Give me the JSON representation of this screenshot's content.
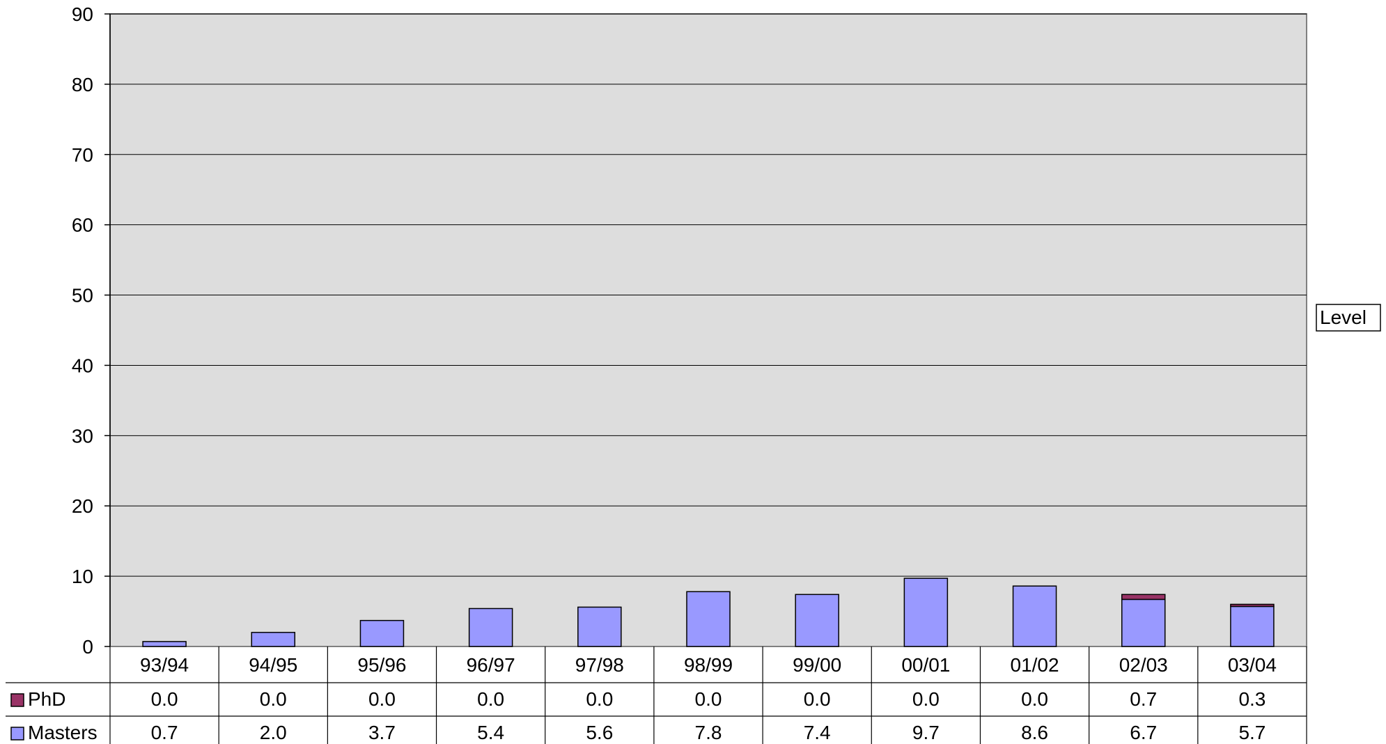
{
  "chart_data": {
    "type": "bar",
    "stacked": true,
    "categories": [
      "93/94",
      "94/95",
      "95/96",
      "96/97",
      "97/98",
      "98/99",
      "99/00",
      "00/01",
      "01/02",
      "02/03",
      "03/04"
    ],
    "series": [
      {
        "name": "Masters",
        "values": [
          0.7,
          2.0,
          3.7,
          5.4,
          5.6,
          7.8,
          7.4,
          9.7,
          8.6,
          6.7,
          5.7
        ],
        "color": "#9999ff"
      },
      {
        "name": "PhD",
        "values": [
          0.0,
          0.0,
          0.0,
          0.0,
          0.0,
          0.0,
          0.0,
          0.0,
          0.0,
          0.7,
          0.3
        ],
        "color": "#993366"
      }
    ],
    "table_rows": [
      {
        "label": "PhD",
        "values": [
          "0.0",
          "0.0",
          "0.0",
          "0.0",
          "0.0",
          "0.0",
          "0.0",
          "0.0",
          "0.0",
          "0.7",
          "0.3"
        ]
      },
      {
        "label": "Masters",
        "values": [
          "0.7",
          "2.0",
          "3.7",
          "5.4",
          "5.6",
          "7.8",
          "7.4",
          "9.7",
          "8.6",
          "6.7",
          "5.7"
        ]
      }
    ],
    "ylim": [
      0,
      90
    ],
    "yticks": [
      "0",
      "10",
      "20",
      "30",
      "40",
      "50",
      "60",
      "70",
      "80",
      "90"
    ],
    "grid": true,
    "plot_background": "#dddddd",
    "legend_title": "Level",
    "legend_placement": "right"
  }
}
